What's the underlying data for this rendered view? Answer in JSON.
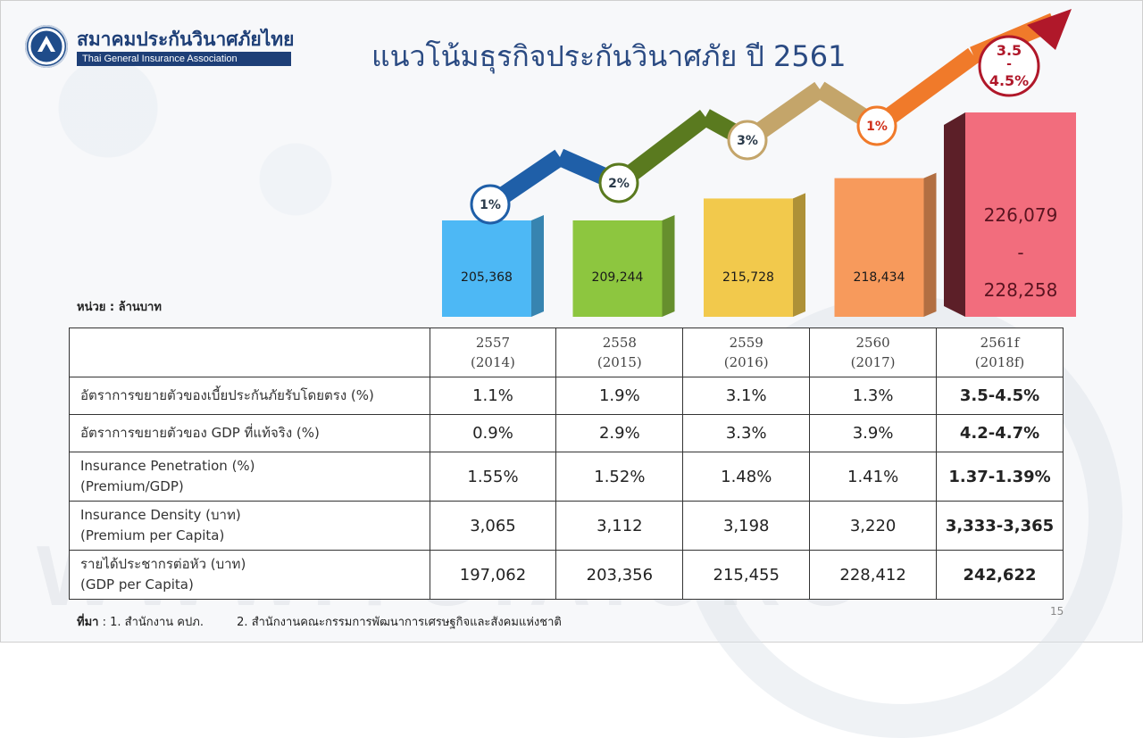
{
  "header": {
    "org_name_th": "สมาคมประกันวินาศภัยไทย",
    "org_name_en": "Thai General Insurance Association",
    "title": "แนวโน้มธุรกิจประกันวินาศภัย ปี 2561"
  },
  "unit_label": "หน่วย : ล้านบาท",
  "chart_data": {
    "type": "bar",
    "title": "แนวโน้มธุรกิจประกันวินาศภัย ปี 2561",
    "categories": [
      "2557",
      "2558",
      "2559",
      "2560",
      "2561f"
    ],
    "series": [
      {
        "values": [
          205368,
          209244,
          215728,
          218434,
          227168.5
        ]
      }
    ],
    "value_labels": [
      "205,368",
      "209,244",
      "215,728",
      "218,434",
      [
        "226,079",
        "-",
        "228,258"
      ]
    ],
    "growth_labels": [
      "1%",
      "2%",
      "3%",
      "1%",
      [
        "3.5",
        "-",
        "4.5%"
      ]
    ],
    "bar_colors": [
      "#4db8f5",
      "#8dc63f",
      "#f2c94c",
      "#f79a5c",
      "#f26d7d"
    ],
    "arrow_colors": [
      "#1f5fa8",
      "#5a7a1f",
      "#c4a56a",
      "#f07a2a",
      "#b0182a"
    ],
    "grid": false,
    "legend": "none"
  },
  "table": {
    "headers": [
      "",
      [
        "2557",
        "(2014)"
      ],
      [
        "2558",
        "(2015)"
      ],
      [
        "2559",
        "(2016)"
      ],
      [
        "2560",
        "(2017)"
      ],
      [
        "2561f",
        "(2018f)"
      ]
    ],
    "rows": [
      {
        "label": [
          "อัตราการขยายตัวของเบี้ยประกันภัยรับโดยตรง (%)"
        ],
        "values": [
          "1.1%",
          "1.9%",
          "3.1%",
          "1.3%",
          "3.5-4.5%"
        ]
      },
      {
        "label": [
          "อัตราการขยายตัวของ GDP ที่แท้จริง (%)"
        ],
        "values": [
          "0.9%",
          "2.9%",
          "3.3%",
          "3.9%",
          "4.2-4.7%"
        ]
      },
      {
        "label": [
          "Insurance Penetration (%)",
          "(Premium/GDP)"
        ],
        "values": [
          "1.55%",
          "1.52%",
          "1.48%",
          "1.41%",
          "1.37-1.39%"
        ]
      },
      {
        "label": [
          "Insurance Density (บาท)",
          "(Premium per Capita)"
        ],
        "values": [
          "3,065",
          "3,112",
          "3,198",
          "3,220",
          "3,333-3,365"
        ]
      },
      {
        "label": [
          "รายได้ประชากรต่อหัว (บาท)",
          "(GDP per Capita)"
        ],
        "values": [
          "197,062",
          "203,356",
          "215,455",
          "228,412",
          "242,622"
        ]
      }
    ]
  },
  "source": {
    "prefix": "ที่มา",
    "item1": ": 1. สำนักงาน คปภ.",
    "item2": "2. สำนักงานคณะกรรมการพัฒนาการเศรษฐกิจและสังคมแห่งชาติ"
  },
  "watermark": "WWW.TGIA.ORG",
  "page_number": "15"
}
